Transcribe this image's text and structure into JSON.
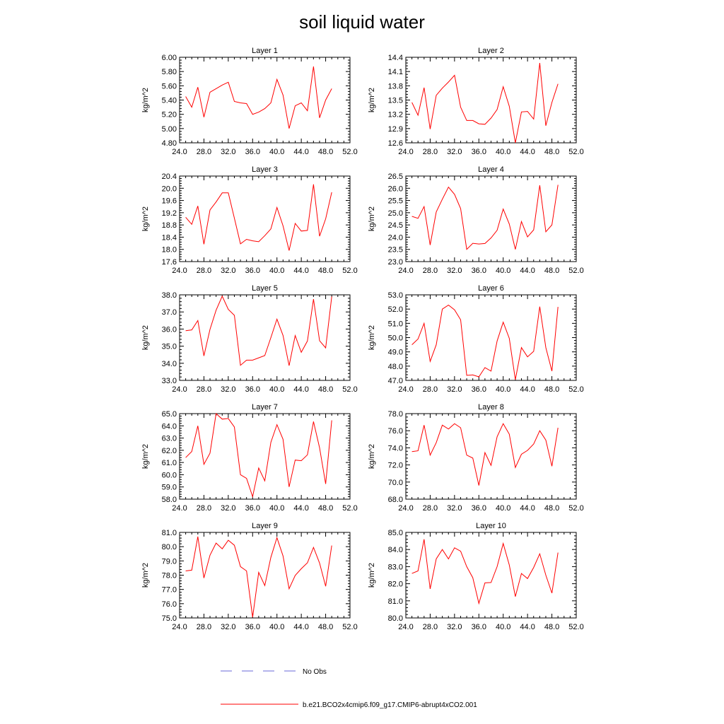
{
  "title": "soil liquid water",
  "legend": {
    "obs_label": "No Obs",
    "obs_color": "#6a6ad8",
    "model_label": "b.e21.BCO2x4cmip6.f09_g17.CMIP6-abrupt4xCO2.001",
    "model_color": "#ff0000"
  },
  "chart_data": [
    {
      "type": "line",
      "title": "Layer 1",
      "ylabel": "kg/m^2",
      "xlim": [
        24,
        52
      ],
      "ylim": [
        4.8,
        6.0
      ],
      "xticks": [
        "24.0",
        "28.0",
        "32.0",
        "36.0",
        "40.0",
        "44.0",
        "48.0",
        "52.0"
      ],
      "yticks": [
        "4.80",
        "5.00",
        "5.20",
        "5.40",
        "5.60",
        "5.80",
        "6.00"
      ],
      "x": [
        25,
        26,
        27,
        28,
        29,
        30,
        31,
        32,
        33,
        34,
        35,
        36,
        37,
        38,
        39,
        40,
        41,
        42,
        43,
        44,
        45,
        46,
        47,
        48,
        49
      ],
      "series": [
        {
          "name": "b.e21.BCO2x4cmip6.f09_g17.CMIP6-abrupt4xCO2.001",
          "values": [
            5.45,
            5.3,
            5.58,
            5.16,
            5.51,
            5.56,
            5.61,
            5.65,
            5.38,
            5.36,
            5.35,
            5.2,
            5.23,
            5.28,
            5.36,
            5.69,
            5.47,
            5.0,
            5.32,
            5.36,
            5.25,
            5.87,
            5.15,
            5.4,
            5.56
          ]
        }
      ]
    },
    {
      "type": "line",
      "title": "Layer 2",
      "ylabel": "kg/m^2",
      "xlim": [
        24,
        52
      ],
      "ylim": [
        12.6,
        14.4
      ],
      "xticks": [
        "24.0",
        "28.0",
        "32.0",
        "36.0",
        "40.0",
        "44.0",
        "48.0",
        "52.0"
      ],
      "yticks": [
        "12.6",
        "12.9",
        "13.2",
        "13.5",
        "13.8",
        "14.1",
        "14.4"
      ],
      "x": [
        25,
        26,
        27,
        28,
        29,
        30,
        31,
        32,
        33,
        34,
        35,
        36,
        37,
        38,
        39,
        40,
        41,
        42,
        43,
        44,
        45,
        46,
        47,
        48,
        49
      ],
      "series": [
        {
          "name": "b.e21.BCO2x4cmip6.f09_g17.CMIP6-abrupt4xCO2.001",
          "values": [
            13.45,
            13.18,
            13.76,
            12.89,
            13.6,
            13.75,
            13.88,
            14.02,
            13.35,
            13.07,
            13.07,
            13.0,
            12.99,
            13.12,
            13.3,
            13.78,
            13.37,
            12.6,
            13.25,
            13.26,
            13.1,
            14.28,
            12.96,
            13.45,
            13.84
          ]
        }
      ]
    },
    {
      "type": "line",
      "title": "Layer 3",
      "ylabel": "kg/m^2",
      "xlim": [
        24,
        52
      ],
      "ylim": [
        17.6,
        20.4
      ],
      "xticks": [
        "24.0",
        "28.0",
        "32.0",
        "36.0",
        "40.0",
        "44.0",
        "48.0",
        "52.0"
      ],
      "yticks": [
        "17.6",
        "18.0",
        "18.4",
        "18.8",
        "19.2",
        "19.6",
        "20.0",
        "20.4"
      ],
      "x": [
        25,
        26,
        27,
        28,
        29,
        30,
        31,
        32,
        33,
        34,
        35,
        36,
        37,
        38,
        39,
        40,
        41,
        42,
        43,
        44,
        45,
        46,
        47,
        48,
        49
      ],
      "series": [
        {
          "name": "b.e21.BCO2x4cmip6.f09_g17.CMIP6-abrupt4xCO2.001",
          "values": [
            19.05,
            18.82,
            19.42,
            18.17,
            19.29,
            19.55,
            19.85,
            19.85,
            19.02,
            18.18,
            18.33,
            18.28,
            18.25,
            18.45,
            18.67,
            19.37,
            18.77,
            17.96,
            18.85,
            18.6,
            18.62,
            20.13,
            18.43,
            19.0,
            19.87
          ]
        }
      ]
    },
    {
      "type": "line",
      "title": "Layer 4",
      "ylabel": "kg/m^2",
      "xlim": [
        23,
        26.5
      ],
      "ylim": [
        23.0,
        26.5
      ],
      "xticks": [
        "24.0",
        "28.0",
        "32.0",
        "36.0",
        "40.0",
        "44.0",
        "48.0",
        "52.0"
      ],
      "yticks": [
        "23.0",
        "23.5",
        "24.0",
        "24.5",
        "25.0",
        "25.5",
        "26.0",
        "26.5"
      ],
      "x": [
        25,
        26,
        27,
        28,
        29,
        30,
        31,
        32,
        33,
        34,
        35,
        36,
        37,
        38,
        39,
        40,
        41,
        42,
        43,
        44,
        45,
        46,
        47,
        48,
        49
      ],
      "series": [
        {
          "name": "b.e21.BCO2x4cmip6.f09_g17.CMIP6-abrupt4xCO2.001",
          "values": [
            24.85,
            24.77,
            25.25,
            23.68,
            25.03,
            25.55,
            26.05,
            25.75,
            25.17,
            23.5,
            23.75,
            23.72,
            23.74,
            23.97,
            24.28,
            25.15,
            24.54,
            23.5,
            24.64,
            24.01,
            24.3,
            26.12,
            24.22,
            24.5,
            26.14
          ]
        }
      ]
    },
    {
      "type": "line",
      "title": "Layer 5",
      "ylabel": "kg/m^2",
      "xlim": [
        24,
        52
      ],
      "ylim": [
        33.0,
        38.0
      ],
      "xticks": [
        "24.0",
        "28.0",
        "32.0",
        "36.0",
        "40.0",
        "44.0",
        "48.0",
        "52.0"
      ],
      "yticks": [
        "33.0",
        "34.0",
        "35.0",
        "36.0",
        "37.0",
        "38.0"
      ],
      "x": [
        25,
        26,
        27,
        28,
        29,
        30,
        31,
        32,
        33,
        34,
        35,
        36,
        37,
        38,
        39,
        40,
        41,
        42,
        43,
        44,
        45,
        46,
        47,
        48,
        49
      ],
      "series": [
        {
          "name": "b.e21.BCO2x4cmip6.f09_g17.CMIP6-abrupt4xCO2.001",
          "values": [
            35.9,
            35.95,
            36.5,
            34.43,
            35.98,
            37.1,
            37.92,
            37.15,
            36.8,
            33.88,
            34.18,
            34.18,
            34.32,
            34.45,
            35.5,
            36.58,
            35.63,
            33.86,
            35.62,
            34.64,
            35.3,
            37.75,
            35.32,
            34.9,
            37.9
          ]
        }
      ]
    },
    {
      "type": "line",
      "title": "Layer 6",
      "ylabel": "kg/m^2",
      "xlim": [
        24,
        52
      ],
      "ylim": [
        47.0,
        53.0
      ],
      "xticks": [
        "24.0",
        "28.0",
        "32.0",
        "36.0",
        "40.0",
        "44.0",
        "48.0",
        "52.0"
      ],
      "yticks": [
        "47.0",
        "48.0",
        "49.0",
        "50.0",
        "51.0",
        "52.0",
        "53.0"
      ],
      "x": [
        25,
        26,
        27,
        28,
        29,
        30,
        31,
        32,
        33,
        34,
        35,
        36,
        37,
        38,
        39,
        40,
        41,
        42,
        43,
        44,
        45,
        46,
        47,
        48,
        49
      ],
      "series": [
        {
          "name": "b.e21.BCO2x4cmip6.f09_g17.CMIP6-abrupt4xCO2.001",
          "values": [
            49.5,
            49.9,
            51.0,
            48.33,
            49.5,
            52.0,
            52.28,
            51.95,
            51.25,
            47.35,
            47.38,
            47.25,
            47.9,
            47.65,
            49.76,
            51.08,
            49.95,
            47.05,
            49.3,
            48.65,
            49.04,
            52.17,
            49.3,
            47.65,
            52.15
          ]
        }
      ]
    },
    {
      "type": "line",
      "title": "Layer 7",
      "ylabel": "kg/m^2",
      "xlim": [
        24,
        52
      ],
      "ylim": [
        58.0,
        65.0
      ],
      "xticks": [
        "24.0",
        "28.0",
        "32.0",
        "36.0",
        "40.0",
        "44.0",
        "48.0",
        "52.0"
      ],
      "yticks": [
        "58.0",
        "59.0",
        "60.0",
        "61.0",
        "62.0",
        "63.0",
        "64.0",
        "65.0"
      ],
      "x": [
        25,
        26,
        27,
        28,
        29,
        30,
        31,
        32,
        33,
        34,
        35,
        36,
        37,
        38,
        39,
        40,
        41,
        42,
        43,
        44,
        45,
        46,
        47,
        48,
        49
      ],
      "series": [
        {
          "name": "b.e21.BCO2x4cmip6.f09_g17.CMIP6-abrupt4xCO2.001",
          "values": [
            61.4,
            61.9,
            64.0,
            60.85,
            61.76,
            65.0,
            64.55,
            64.6,
            63.9,
            60.0,
            59.7,
            58.2,
            60.55,
            59.5,
            62.65,
            64.1,
            62.9,
            59.0,
            61.2,
            61.15,
            61.63,
            64.35,
            62.2,
            59.25,
            64.45
          ]
        }
      ]
    },
    {
      "type": "line",
      "title": "Layer 8",
      "ylabel": "kg/m^2",
      "xlim": [
        24,
        52
      ],
      "ylim": [
        68.0,
        78.0
      ],
      "xticks": [
        "24.0",
        "28.0",
        "32.0",
        "36.0",
        "40.0",
        "44.0",
        "48.0",
        "52.0"
      ],
      "yticks": [
        "68.0",
        "70.0",
        "72.0",
        "74.0",
        "76.0",
        "78.0"
      ],
      "x": [
        25,
        26,
        27,
        28,
        29,
        30,
        31,
        32,
        33,
        34,
        35,
        36,
        37,
        38,
        39,
        40,
        41,
        42,
        43,
        44,
        45,
        46,
        47,
        48,
        49
      ],
      "series": [
        {
          "name": "b.e21.BCO2x4cmip6.f09_g17.CMIP6-abrupt4xCO2.001",
          "values": [
            73.55,
            73.65,
            76.65,
            73.15,
            74.6,
            76.65,
            76.2,
            76.83,
            76.35,
            73.15,
            72.8,
            69.6,
            73.45,
            71.95,
            75.3,
            76.83,
            75.6,
            71.7,
            73.25,
            73.7,
            74.45,
            76.0,
            74.9,
            71.85,
            76.35
          ]
        }
      ]
    },
    {
      "type": "line",
      "title": "Layer 9",
      "ylabel": "kg/m^2",
      "xlim": [
        24,
        52
      ],
      "ylim": [
        75.0,
        81.0
      ],
      "xticks": [
        "24.0",
        "28.0",
        "32.0",
        "36.0",
        "40.0",
        "44.0",
        "48.0",
        "52.0"
      ],
      "yticks": [
        "75.0",
        "76.0",
        "77.0",
        "78.0",
        "79.0",
        "80.0",
        "81.0"
      ],
      "x": [
        25,
        26,
        27,
        28,
        29,
        30,
        31,
        32,
        33,
        34,
        35,
        36,
        37,
        38,
        39,
        40,
        41,
        42,
        43,
        44,
        45,
        46,
        47,
        48,
        49
      ],
      "series": [
        {
          "name": "b.e21.BCO2x4cmip6.f09_g17.CMIP6-abrupt4xCO2.001",
          "values": [
            78.3,
            78.35,
            80.7,
            77.8,
            79.4,
            80.25,
            79.85,
            80.45,
            80.1,
            78.6,
            78.3,
            75.05,
            78.2,
            77.27,
            79.25,
            80.63,
            79.35,
            77.05,
            77.98,
            78.45,
            78.87,
            79.95,
            78.85,
            77.22,
            80.08
          ]
        }
      ]
    },
    {
      "type": "line",
      "title": "Layer 10",
      "ylabel": "kg/m^2",
      "xlim": [
        24,
        52
      ],
      "ylim": [
        80.0,
        85.0
      ],
      "xticks": [
        "24.0",
        "28.0",
        "32.0",
        "36.0",
        "40.0",
        "44.0",
        "48.0",
        "52.0"
      ],
      "yticks": [
        "80.0",
        "81.0",
        "82.0",
        "83.0",
        "84.0",
        "85.0"
      ],
      "x": [
        25,
        26,
        27,
        28,
        29,
        30,
        31,
        32,
        33,
        34,
        35,
        36,
        37,
        38,
        39,
        40,
        41,
        42,
        43,
        44,
        45,
        46,
        47,
        48,
        49
      ],
      "series": [
        {
          "name": "b.e21.BCO2x4cmip6.f09_g17.CMIP6-abrupt4xCO2.001",
          "values": [
            82.6,
            82.75,
            84.6,
            81.7,
            83.45,
            84.0,
            83.45,
            84.1,
            83.9,
            83.0,
            82.35,
            80.85,
            82.05,
            82.07,
            83.0,
            84.35,
            83.1,
            81.25,
            82.6,
            82.3,
            82.95,
            83.75,
            82.5,
            81.45,
            83.82
          ]
        }
      ]
    }
  ]
}
